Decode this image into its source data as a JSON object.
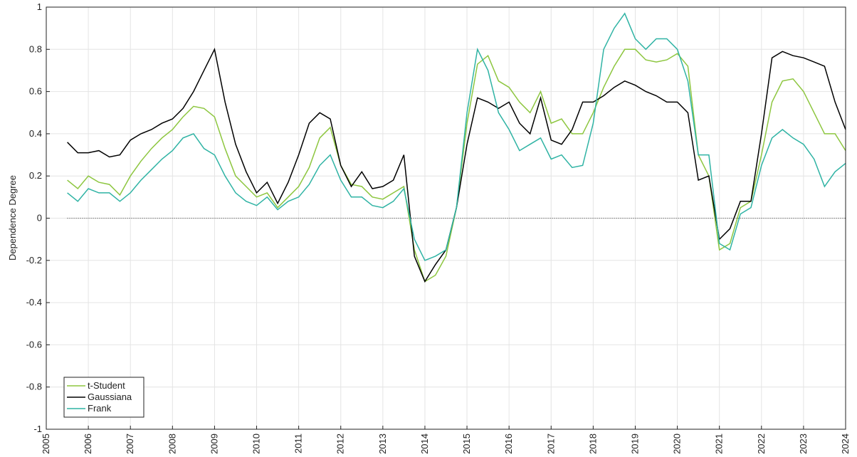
{
  "chart_data": {
    "type": "line",
    "ylabel": "Dependence Degree",
    "x": [
      2005.5,
      2005.75,
      2006,
      2006.25,
      2006.5,
      2006.75,
      2007,
      2007.25,
      2007.5,
      2007.75,
      2008,
      2008.25,
      2008.5,
      2008.75,
      2009,
      2009.25,
      2009.5,
      2009.75,
      2010,
      2010.25,
      2010.5,
      2010.75,
      2011,
      2011.25,
      2011.5,
      2011.75,
      2012,
      2012.25,
      2012.5,
      2012.75,
      2013,
      2013.25,
      2013.5,
      2013.75,
      2014,
      2014.25,
      2014.5,
      2014.75,
      2015,
      2015.25,
      2015.5,
      2015.75,
      2016,
      2016.25,
      2016.5,
      2016.75,
      2017,
      2017.25,
      2017.5,
      2017.75,
      2018,
      2018.25,
      2018.5,
      2018.75,
      2019,
      2019.25,
      2019.5,
      2019.75,
      2020,
      2020.25,
      2020.5,
      2020.75,
      2021,
      2021.25,
      2021.5,
      2021.75,
      2022,
      2022.25,
      2022.5,
      2022.75,
      2023,
      2023.25,
      2023.5,
      2023.75,
      2024
    ],
    "series": [
      {
        "name": "t-Student",
        "color": "#8dc63f",
        "values": [
          0.18,
          0.14,
          0.2,
          0.17,
          0.16,
          0.11,
          0.2,
          0.27,
          0.33,
          0.38,
          0.42,
          0.48,
          0.53,
          0.52,
          0.48,
          0.33,
          0.2,
          0.15,
          0.1,
          0.12,
          0.05,
          0.1,
          0.15,
          0.24,
          0.38,
          0.43,
          0.25,
          0.16,
          0.15,
          0.1,
          0.09,
          0.12,
          0.15,
          -0.15,
          -0.3,
          -0.27,
          -0.18,
          0.05,
          0.45,
          0.73,
          0.77,
          0.65,
          0.62,
          0.55,
          0.5,
          0.6,
          0.45,
          0.47,
          0.4,
          0.4,
          0.5,
          0.62,
          0.72,
          0.8,
          0.8,
          0.75,
          0.74,
          0.75,
          0.78,
          0.72,
          0.3,
          0.2,
          -0.15,
          -0.12,
          0.05,
          0.08,
          0.3,
          0.55,
          0.65,
          0.66,
          0.6,
          0.5,
          0.4,
          0.4,
          0.32
        ]
      },
      {
        "name": "Gaussiana",
        "color": "#000000",
        "values": [
          0.36,
          0.31,
          0.31,
          0.32,
          0.29,
          0.3,
          0.37,
          0.4,
          0.42,
          0.45,
          0.47,
          0.52,
          0.6,
          0.7,
          0.8,
          0.55,
          0.35,
          0.22,
          0.12,
          0.17,
          0.07,
          0.17,
          0.3,
          0.45,
          0.5,
          0.47,
          0.25,
          0.15,
          0.22,
          0.14,
          0.15,
          0.18,
          0.3,
          -0.18,
          -0.3,
          -0.22,
          -0.15,
          0.05,
          0.35,
          0.57,
          0.55,
          0.52,
          0.55,
          0.45,
          0.4,
          0.57,
          0.37,
          0.35,
          0.42,
          0.55,
          0.55,
          0.58,
          0.62,
          0.65,
          0.63,
          0.6,
          0.58,
          0.55,
          0.55,
          0.5,
          0.18,
          0.2,
          -0.1,
          -0.05,
          0.08,
          0.08,
          0.4,
          0.76,
          0.79,
          0.77,
          0.76,
          0.74,
          0.72,
          0.55,
          0.42
        ]
      },
      {
        "name": "Frank",
        "color": "#2fb3a4",
        "values": [
          0.12,
          0.08,
          0.14,
          0.12,
          0.12,
          0.08,
          0.12,
          0.18,
          0.23,
          0.28,
          0.32,
          0.38,
          0.4,
          0.33,
          0.3,
          0.2,
          0.12,
          0.08,
          0.06,
          0.1,
          0.04,
          0.08,
          0.1,
          0.16,
          0.25,
          0.3,
          0.18,
          0.1,
          0.1,
          0.06,
          0.05,
          0.08,
          0.14,
          -0.1,
          -0.2,
          -0.18,
          -0.15,
          0.05,
          0.5,
          0.8,
          0.7,
          0.5,
          0.42,
          0.32,
          0.35,
          0.38,
          0.28,
          0.3,
          0.24,
          0.25,
          0.45,
          0.8,
          0.9,
          0.97,
          0.85,
          0.8,
          0.85,
          0.85,
          0.8,
          0.65,
          0.3,
          0.3,
          -0.12,
          -0.15,
          0.02,
          0.05,
          0.25,
          0.38,
          0.42,
          0.38,
          0.35,
          0.28,
          0.15,
          0.22,
          0.26
        ]
      }
    ],
    "xlim": [
      2005,
      2024
    ],
    "xticks": [
      2005,
      2006,
      2007,
      2008,
      2009,
      2010,
      2011,
      2012,
      2013,
      2014,
      2015,
      2016,
      2017,
      2018,
      2019,
      2020,
      2021,
      2022,
      2023,
      2024
    ],
    "ylim": [
      -1,
      1
    ],
    "yticks": [
      -1,
      -0.8,
      -0.6,
      -0.4,
      -0.2,
      0,
      0.2,
      0.4,
      0.6,
      0.8,
      1
    ],
    "grid": true,
    "zero_line": true,
    "legend_position": "lower left"
  }
}
